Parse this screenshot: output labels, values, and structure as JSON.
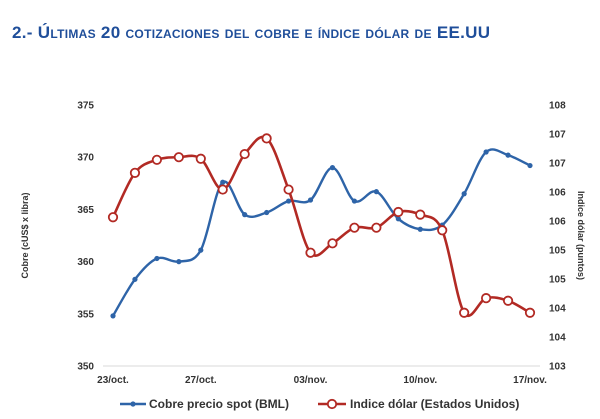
{
  "header": {
    "number": "2.- ",
    "text": "Últimas 20 cotizaciones del cobre e índice dólar de EE.UU"
  },
  "chart_data": {
    "type": "line",
    "x_ticks": [
      "23/oct.",
      "27/oct.",
      "03/nov.",
      "10/nov.",
      "17/nov."
    ],
    "x_tick_index": [
      0,
      4,
      9,
      14,
      19
    ],
    "y_left": {
      "label": "Cobre (cUS$ x libra)",
      "ticks": [
        "350",
        "355",
        "360",
        "365",
        "370",
        "375"
      ],
      "range": [
        350,
        375
      ]
    },
    "y_right": {
      "label": "Indice dólar (puntos)",
      "ticks": [
        "103",
        "104",
        "104",
        "105",
        "105",
        "106",
        "106",
        "107",
        "107",
        "108"
      ],
      "range": [
        103,
        108
      ]
    },
    "series": [
      {
        "name": "Cobre precio spot (BML)",
        "axis": "left",
        "color": "#2e64a8",
        "values": [
          354.8,
          358.3,
          360.3,
          360.0,
          361.1,
          367.6,
          364.5,
          364.7,
          365.8,
          365.9,
          369.0,
          365.8,
          366.7,
          364.1,
          363.1,
          363.5,
          366.5,
          370.5,
          370.2,
          369.2
        ]
      },
      {
        "name": "Indice dólar (Estados Unidos)",
        "axis": "right",
        "color": "#b22a24",
        "values": [
          105.85,
          106.7,
          106.95,
          107.0,
          106.97,
          106.38,
          107.06,
          107.36,
          106.38,
          105.17,
          105.35,
          105.65,
          105.65,
          105.95,
          105.9,
          105.6,
          104.02,
          104.3,
          104.25,
          104.02
        ]
      }
    ],
    "grid": false,
    "legend_position": "bottom"
  }
}
